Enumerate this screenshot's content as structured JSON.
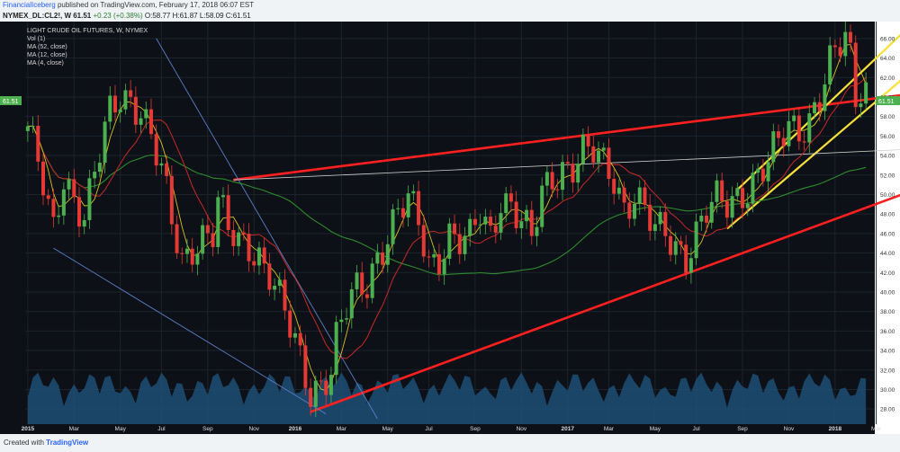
{
  "header": {
    "author": "FinancialIceberg",
    "published": "published on TradingView.com, February 17, 2018 06:07 EST"
  },
  "symbol_line": {
    "symbol": "NYMEX_DL:CL2!, W",
    "price": "61.51",
    "change": "+0.23 (+0.38%)",
    "ohlc": "O:58.77 H:61.87 L:58.09 C:61.51"
  },
  "legend": {
    "title": "LIGHT CRUDE OIL FUTURES, W, NYMEX",
    "items": [
      "Vol (1)",
      "MA (52, close)",
      "MA (12, close)",
      "MA (4, close)"
    ]
  },
  "footer": {
    "created_with": "Created with",
    "brand": "TradingView"
  },
  "price_tag": "61.51",
  "colors": {
    "background": "#0d1117",
    "up": "#4caf50",
    "down": "#e53935",
    "volume": "#1e4f75",
    "trend_red": "#ff1f1f",
    "channel_yellow": "#f5e13a",
    "ma52": "#2e8b2e",
    "ma12": "#c62828",
    "ma4": "#d4c21f"
  },
  "chart_data": {
    "type": "candlestick",
    "title": "LIGHT CRUDE OIL FUTURES, W, NYMEX",
    "ylim": [
      27,
      67
    ],
    "x_ticks": [
      {
        "label": "2015",
        "x": 0
      },
      {
        "label": "Mar",
        "x": 9
      },
      {
        "label": "May",
        "x": 18
      },
      {
        "label": "Jul",
        "x": 26
      },
      {
        "label": "Sep",
        "x": 35
      },
      {
        "label": "Nov",
        "x": 44
      },
      {
        "label": "2016",
        "x": 52
      },
      {
        "label": "Mar",
        "x": 61
      },
      {
        "label": "May",
        "x": 70
      },
      {
        "label": "Jul",
        "x": 78
      },
      {
        "label": "Sep",
        "x": 87
      },
      {
        "label": "Nov",
        "x": 96
      },
      {
        "label": "2017",
        "x": 105
      },
      {
        "label": "Mar",
        "x": 113
      },
      {
        "label": "May",
        "x": 122
      },
      {
        "label": "Jul",
        "x": 130
      },
      {
        "label": "Sep",
        "x": 139
      },
      {
        "label": "Nov",
        "x": 148
      },
      {
        "label": "2018",
        "x": 157
      },
      {
        "label": "Mar",
        "x": 165
      }
    ],
    "y_ticks": [
      28,
      30,
      32,
      34,
      36,
      38,
      40,
      42,
      44,
      46,
      48,
      50,
      52,
      54,
      56,
      58,
      60,
      62,
      64,
      66
    ],
    "anchors": [
      [
        0,
        57
      ],
      [
        2,
        53
      ],
      [
        4,
        48
      ],
      [
        5,
        46
      ],
      [
        7,
        52
      ],
      [
        9,
        50
      ],
      [
        11,
        48
      ],
      [
        13,
        52
      ],
      [
        16,
        58
      ],
      [
        18,
        60
      ],
      [
        20,
        60
      ],
      [
        22,
        59
      ],
      [
        24,
        56
      ],
      [
        26,
        52
      ],
      [
        28,
        47
      ],
      [
        30,
        43
      ],
      [
        32,
        45
      ],
      [
        34,
        46
      ],
      [
        36,
        46
      ],
      [
        37,
        49
      ],
      [
        39,
        46
      ],
      [
        41,
        45
      ],
      [
        43,
        45
      ],
      [
        45,
        44
      ],
      [
        47,
        42
      ],
      [
        49,
        39
      ],
      [
        51,
        36
      ],
      [
        53,
        33
      ],
      [
        55,
        30
      ],
      [
        57,
        31
      ],
      [
        59,
        32
      ],
      [
        60,
        35
      ],
      [
        62,
        38
      ],
      [
        64,
        40
      ],
      [
        66,
        41
      ],
      [
        68,
        44
      ],
      [
        70,
        46
      ],
      [
        72,
        48
      ],
      [
        74,
        49
      ],
      [
        76,
        47
      ],
      [
        78,
        43
      ],
      [
        80,
        44
      ],
      [
        82,
        46
      ],
      [
        84,
        45
      ],
      [
        86,
        45
      ],
      [
        88,
        48
      ],
      [
        90,
        46
      ],
      [
        92,
        50
      ],
      [
        94,
        49
      ],
      [
        96,
        47
      ],
      [
        98,
        45
      ],
      [
        100,
        50
      ],
      [
        102,
        52
      ],
      [
        104,
        53
      ],
      [
        106,
        53
      ],
      [
        108,
        54
      ],
      [
        110,
        54
      ],
      [
        112,
        53
      ],
      [
        114,
        52
      ],
      [
        116,
        49
      ],
      [
        118,
        50
      ],
      [
        120,
        48
      ],
      [
        122,
        46
      ],
      [
        124,
        46
      ],
      [
        126,
        45
      ],
      [
        128,
        44
      ],
      [
        130,
        46
      ],
      [
        132,
        48
      ],
      [
        134,
        49
      ],
      [
        136,
        49
      ],
      [
        138,
        50
      ],
      [
        140,
        51
      ],
      [
        142,
        52
      ],
      [
        144,
        53
      ],
      [
        146,
        55
      ],
      [
        148,
        57
      ],
      [
        150,
        57
      ],
      [
        152,
        58
      ],
      [
        154,
        60
      ],
      [
        156,
        63
      ],
      [
        157,
        64
      ],
      [
        158,
        65
      ],
      [
        159,
        66
      ],
      [
        160,
        64
      ],
      [
        161,
        60
      ],
      [
        162,
        61.5
      ]
    ],
    "series": [
      {
        "name": "Vol (1)"
      },
      {
        "name": "MA (52, close)"
      },
      {
        "name": "MA (12, close)"
      },
      {
        "name": "MA (4, close)"
      }
    ],
    "trendlines": [
      {
        "color": "red",
        "points": [
          [
            40,
            51.5
          ],
          [
            170,
            60.2
          ]
        ]
      },
      {
        "color": "red",
        "points": [
          [
            55,
            27.7
          ],
          [
            170,
            50
          ]
        ]
      },
      {
        "color": "yellow",
        "points": [
          [
            138,
            50.5
          ],
          [
            170,
            66.5
          ]
        ]
      },
      {
        "color": "yellow",
        "points": [
          [
            136,
            46.5
          ],
          [
            170,
            61.8
          ]
        ]
      },
      {
        "color": "white",
        "points": [
          [
            40,
            51.5
          ],
          [
            170,
            54.6
          ]
        ]
      },
      {
        "color": "blue",
        "points": [
          [
            25,
            66
          ],
          [
            68,
            27
          ]
        ]
      },
      {
        "color": "blue",
        "points": [
          [
            5,
            44.5
          ],
          [
            58,
            27.5
          ]
        ]
      }
    ]
  }
}
